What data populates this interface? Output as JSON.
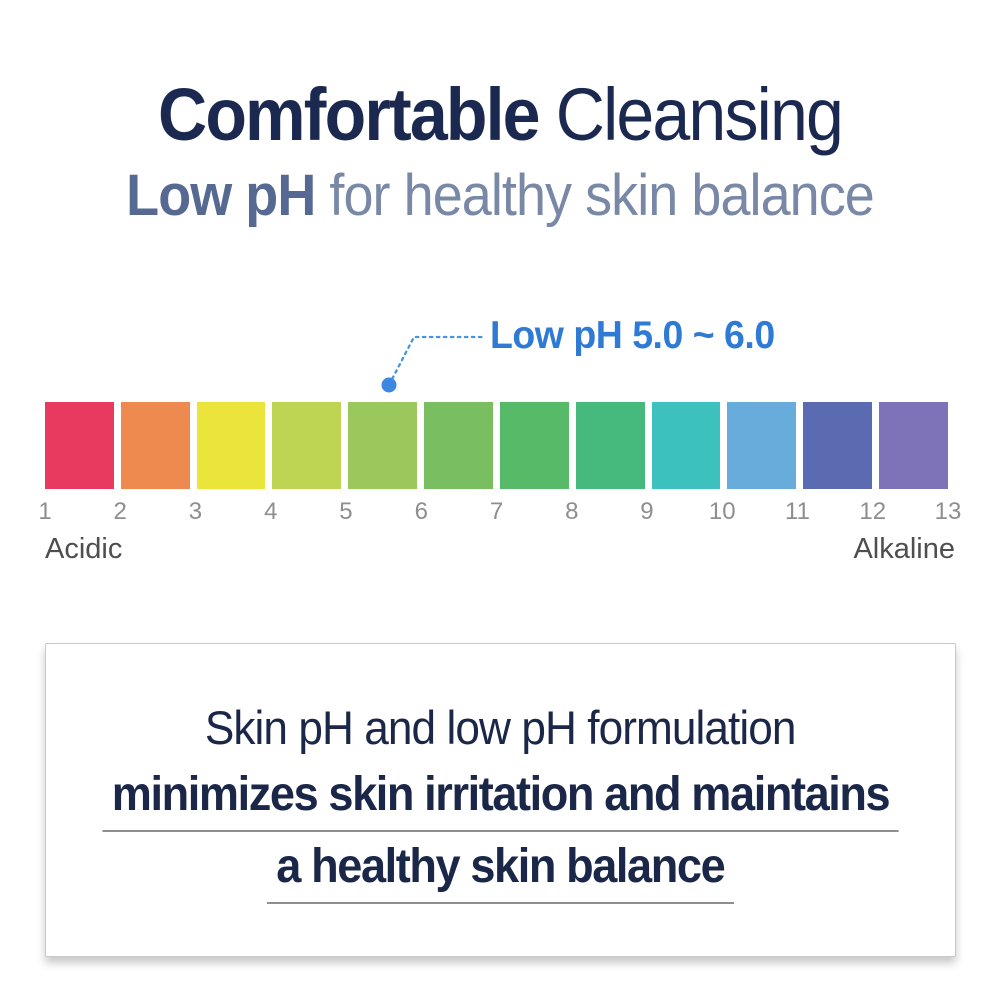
{
  "header": {
    "title_bold": "Comfortable",
    "title_light": "Cleansing",
    "subtitle_bold": "Low pH",
    "subtitle_light": "for healthy skin balance",
    "title_color": "#1b2950",
    "subtitle_color": "#566992"
  },
  "callout": {
    "label": "Low pH 5.0 ~ 6.0",
    "text_color": "#2e7ad4",
    "dot_color": "#3d87e0",
    "marker_ph": 5.5
  },
  "ph_scale": {
    "type": "color-scale",
    "range": [
      1,
      13
    ],
    "tick_labels": [
      "1",
      "2",
      "3",
      "4",
      "5",
      "6",
      "7",
      "8",
      "9",
      "10",
      "11",
      "12",
      "13"
    ],
    "left_label": "Acidic",
    "right_label": "Alkaline",
    "blocks": [
      {
        "from": 1,
        "to": 2,
        "color": "#e8395f"
      },
      {
        "from": 2,
        "to": 3,
        "color": "#ee8a50"
      },
      {
        "from": 3,
        "to": 4,
        "color": "#ebe43a"
      },
      {
        "from": 4,
        "to": 5,
        "color": "#bdd553"
      },
      {
        "from": 5,
        "to": 6,
        "color": "#9ac85d"
      },
      {
        "from": 6,
        "to": 7,
        "color": "#79bf61"
      },
      {
        "from": 7,
        "to": 8,
        "color": "#57ba68"
      },
      {
        "from": 8,
        "to": 9,
        "color": "#45ba7c"
      },
      {
        "from": 9,
        "to": 10,
        "color": "#3dc1be"
      },
      {
        "from": 10,
        "to": 11,
        "color": "#68acdc"
      },
      {
        "from": 11,
        "to": 12,
        "color": "#5a6bb2"
      },
      {
        "from": 12,
        "to": 13,
        "color": "#7e72b8"
      }
    ]
  },
  "info_box": {
    "line1": "Skin pH and low pH formulation",
    "line2": "minimizes skin irritation and maintains",
    "line3": "a healthy skin balance",
    "text_color": "#1b2748"
  }
}
